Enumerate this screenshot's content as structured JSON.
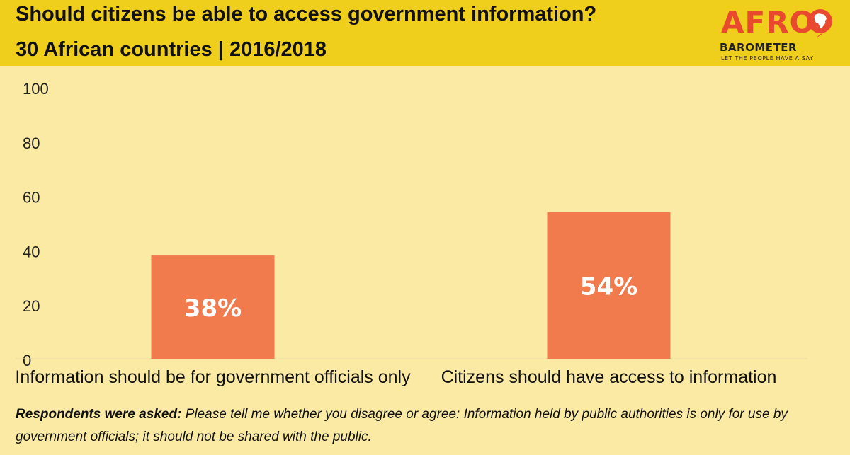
{
  "header": {
    "title": "Should citizens be able to access government information?",
    "subtitle": "30 African countries  |  2016/2018"
  },
  "logo": {
    "afro": "AFRO",
    "barometer": "BAROMETER",
    "tagline": "LET THE PEOPLE HAVE A SAY",
    "globe_icon": "africa-globe-icon"
  },
  "colors": {
    "header_bg": "#efce1c",
    "plot_bg": "#faeaa3",
    "bar": "#f17b4c",
    "brand_red": "#e8492f"
  },
  "chart_data": {
    "type": "bar",
    "categories": [
      "Information should be for government officials only",
      "Citizens should have access to information"
    ],
    "values": [
      38,
      54
    ],
    "data_labels": [
      "38%",
      "54%"
    ],
    "ylim": [
      0,
      100
    ],
    "yticks": [
      0,
      20,
      40,
      60,
      80,
      100
    ],
    "xlabel": "",
    "ylabel": "",
    "grid": false,
    "legend": "none"
  },
  "footnote": {
    "lead": "Respondents were asked:",
    "text": " Please tell me whether you disagree or agree: Information held by public authorities is only for use by government officials; it should not be shared with the public."
  }
}
